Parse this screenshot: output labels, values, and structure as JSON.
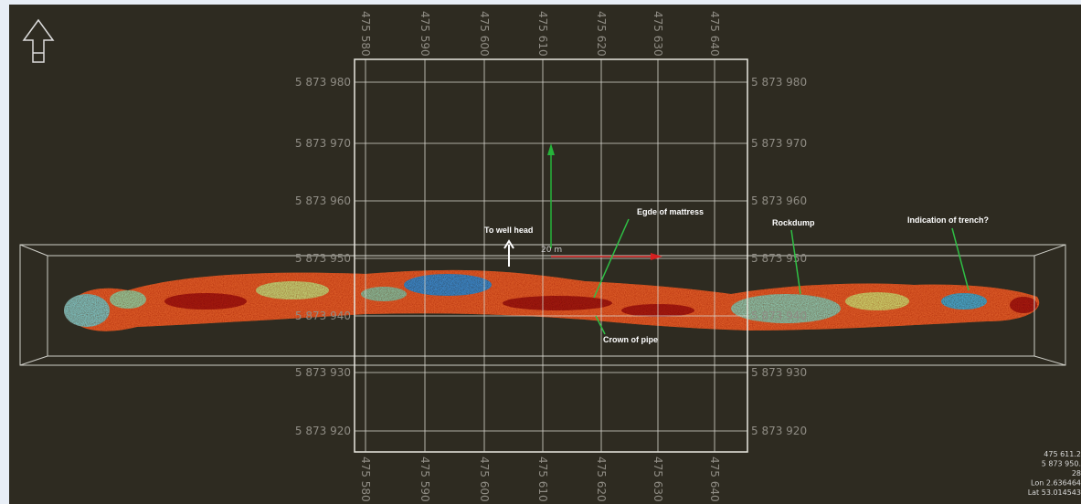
{
  "eastings": [
    "475 580",
    "475 590",
    "475 600",
    "475 610",
    "475 620",
    "475 630",
    "475 640"
  ],
  "northings": [
    "5 873 980",
    "5 873 970",
    "5 873 960",
    "5 873 950",
    "5 873 940",
    "5 873 930",
    "5 873 920"
  ],
  "annotations": {
    "well_head": "To well head",
    "scale": "20 m",
    "mattress": "Egde of mattress",
    "crown": "Crown of pipe",
    "rockdump": "Rockdump",
    "trench": "Indication of trench?"
  },
  "readout": [
    "475 611.2",
    "5 873 950.",
    "28",
    "Lon 2.636464",
    "Lat 53.014543"
  ]
}
